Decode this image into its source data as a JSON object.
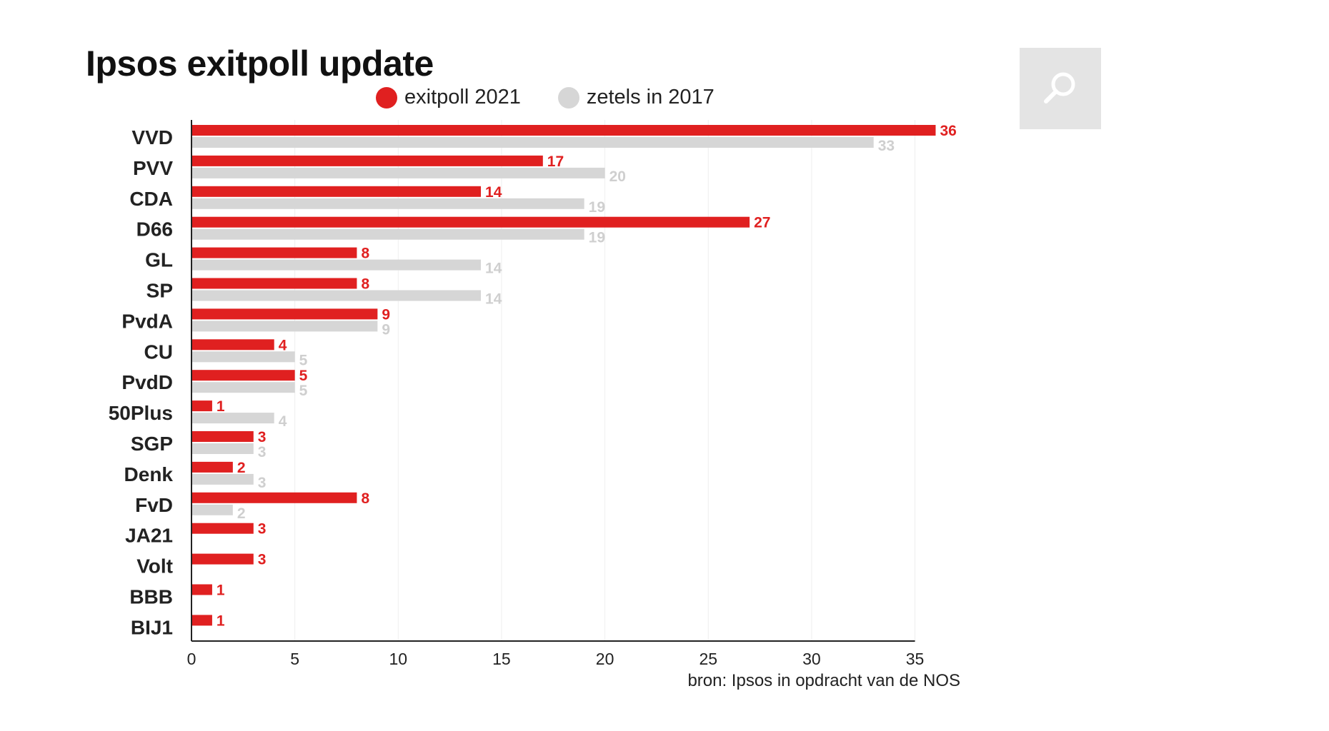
{
  "colors": {
    "red": "#e02020",
    "grey": "#d6d6d6",
    "grey_label": "#cfcfcf",
    "grid": "#eeeeee",
    "search_bg": "#e4e4e4"
  },
  "search_icon": "magnifier-icon",
  "source": "bron: Ipsos in opdracht van de NOS",
  "chart_data": {
    "type": "bar",
    "orientation": "horizontal",
    "title": "Ipsos exitpoll update",
    "legend_position": "top",
    "grid": "vertical",
    "categories": [
      "VVD",
      "PVV",
      "CDA",
      "D66",
      "GL",
      "SP",
      "PvdA",
      "CU",
      "PvdD",
      "50Plus",
      "SGP",
      "Denk",
      "FvD",
      "JA21",
      "Volt",
      "BBB",
      "BIJ1"
    ],
    "series": [
      {
        "name": "exitpoll 2021",
        "color": "#e02020",
        "values": [
          36,
          17,
          14,
          27,
          8,
          8,
          9,
          4,
          5,
          1,
          3,
          2,
          8,
          3,
          3,
          1,
          1
        ]
      },
      {
        "name": "zetels in 2017",
        "color": "#d6d6d6",
        "values": [
          33,
          20,
          19,
          19,
          14,
          14,
          9,
          5,
          5,
          4,
          3,
          3,
          2,
          null,
          null,
          null,
          null
        ]
      }
    ],
    "xlim": [
      0,
      35
    ],
    "xticks": [
      "0",
      "5",
      "10",
      "15",
      "20",
      "25",
      "30",
      "35"
    ],
    "xlabel": "",
    "ylabel": ""
  }
}
